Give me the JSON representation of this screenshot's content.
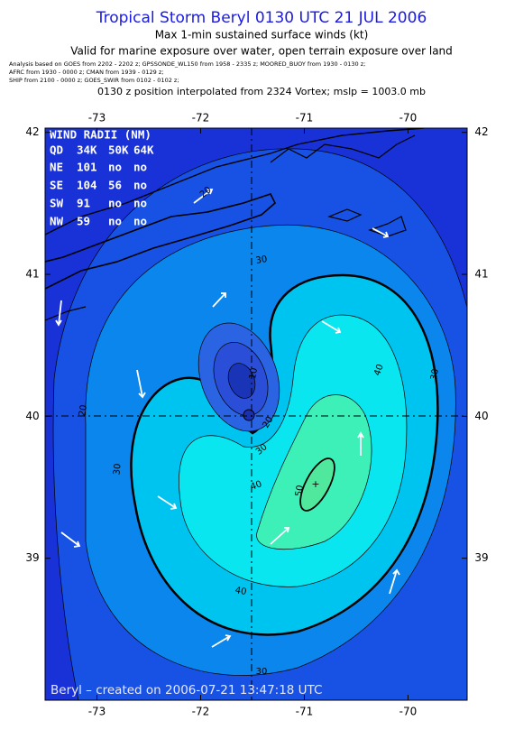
{
  "header": {
    "title": "Tropical Storm Beryl 0130 UTC 21 JUL 2006",
    "subtitle": "Max 1-min sustained surface winds (kt)",
    "validity": "Valid for marine exposure over water, open terrain exposure over land",
    "analysis_notes": [
      "Analysis based on  GOES from 2202 - 2202 z;  GPSSONDE_WL150 from 1958 - 2335 z;   MOORED_BUOY from 1930 - 0130 z;",
      "AFRC from 1930 - 0000 z;  CMAN from 1939 - 0129 z;",
      "SHIP from 2100 - 0000 z;  GOES_SWIR from 0102 - 0102 z;"
    ],
    "position_note": "0130 z position interpolated from 2324 Vortex; mslp = 1003.0 mb"
  },
  "map": {
    "xlim": [
      -73.5,
      -69.43
    ],
    "ylim": [
      38,
      42.03
    ],
    "xticks": [
      -73,
      -72,
      -71,
      -70
    ],
    "yticks": [
      42,
      41,
      40,
      39
    ],
    "contour_labels": [
      20,
      30,
      20,
      30,
      40,
      30,
      10,
      20,
      30,
      40,
      50,
      40,
      30
    ]
  },
  "wind_radii": {
    "title": "WIND RADII (NM)",
    "columns": [
      "QD",
      "34K",
      "50K",
      "64K"
    ],
    "rows": [
      [
        "NE",
        "101",
        "no",
        "no"
      ],
      [
        "SE",
        "104",
        "56",
        "no"
      ],
      [
        "SW",
        "91",
        "no",
        "no"
      ],
      [
        "NW",
        "59",
        "no",
        "no"
      ]
    ]
  },
  "footer": {
    "credit": "Beryl – created on 2006-07-21 13:47:18 UTC"
  }
}
